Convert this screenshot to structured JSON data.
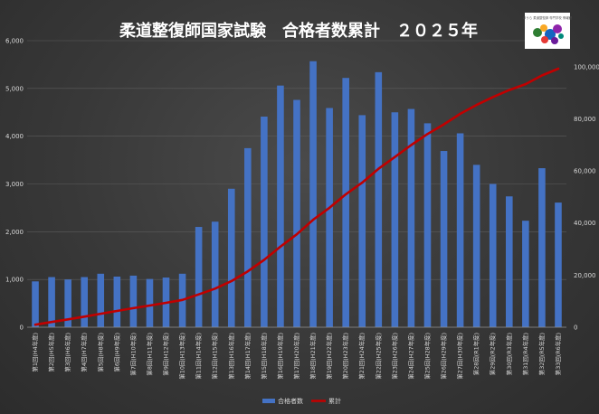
{
  "chart_data": {
    "type": "bar",
    "title": "柔道整復師国家試験　合格者数累計　２０２５年",
    "categories": [
      "第1回(H4年度)",
      "第2回(H5年度)",
      "第3回(H6年度)",
      "第4回(H7年度)",
      "第5回(H8年度)",
      "第6回(H9年度)",
      "第7回(H10年度)",
      "第8回(H11年度)",
      "第9回(H12年度)",
      "第10回(H13年度)",
      "第11回(H14年度)",
      "第12回(H15年度)",
      "第13回(H16年度)",
      "第14回(H17年度)",
      "第15回(H18年度)",
      "第16回(H19年度)",
      "第17回(H20年度)",
      "第18回(H21年度)",
      "第19回(H22年度)",
      "第20回(H23年度)",
      "第21回(H24年度)",
      "第22回(H25年度)",
      "第23回(H26年度)",
      "第24回(H27年度)",
      "第25回(H28年度)",
      "第26回(H29年度)",
      "第27回(H30年度)",
      "第28回(R1年度)",
      "第29回(R2年度)",
      "第30回(R3年度)",
      "第31回(R4年度)",
      "第32回(R5年度)",
      "第33回(R6年度)"
    ],
    "series": [
      {
        "name": "合格者数",
        "type": "bar",
        "axis": "left",
        "color": "#4472c4",
        "values": [
          960,
          1050,
          1000,
          1050,
          1120,
          1060,
          1080,
          1010,
          1040,
          1120,
          2100,
          2210,
          2900,
          3750,
          4410,
          5060,
          4760,
          5570,
          4590,
          5220,
          4440,
          5340,
          4500,
          4570,
          4270,
          3690,
          4060,
          3400,
          3000,
          2740,
          2230,
          3330,
          2610
        ]
      },
      {
        "name": "累計",
        "type": "line",
        "axis": "right",
        "color": "#c00000",
        "values": [
          960,
          2010,
          3010,
          4060,
          5180,
          6240,
          7320,
          8330,
          9370,
          10490,
          12590,
          14800,
          17700,
          21450,
          25860,
          30920,
          35680,
          41250,
          45840,
          51060,
          55500,
          60840,
          65340,
          69910,
          74180,
          77870,
          81930,
          85330,
          88330,
          91070,
          93300,
          96630,
          99240
        ]
      }
    ],
    "y_left": {
      "min": 0,
      "max": 6000,
      "step": 1000,
      "tick_labels": [
        "0",
        "1,000",
        "2,000",
        "3,000",
        "4,000",
        "5,000",
        "6,000"
      ]
    },
    "y_right": {
      "min": 0,
      "max": 110000,
      "tick_values": [
        0,
        20000,
        40000,
        60000,
        80000,
        100000
      ],
      "tick_labels": [
        "0",
        "20,000",
        "40,000",
        "60,000",
        "80,000",
        "100,000"
      ]
    },
    "grid": true,
    "legend_position": "bottom-center"
  },
  "logo": {
    "text": "ほうら 柔道整復師 専門学校 情報館"
  }
}
